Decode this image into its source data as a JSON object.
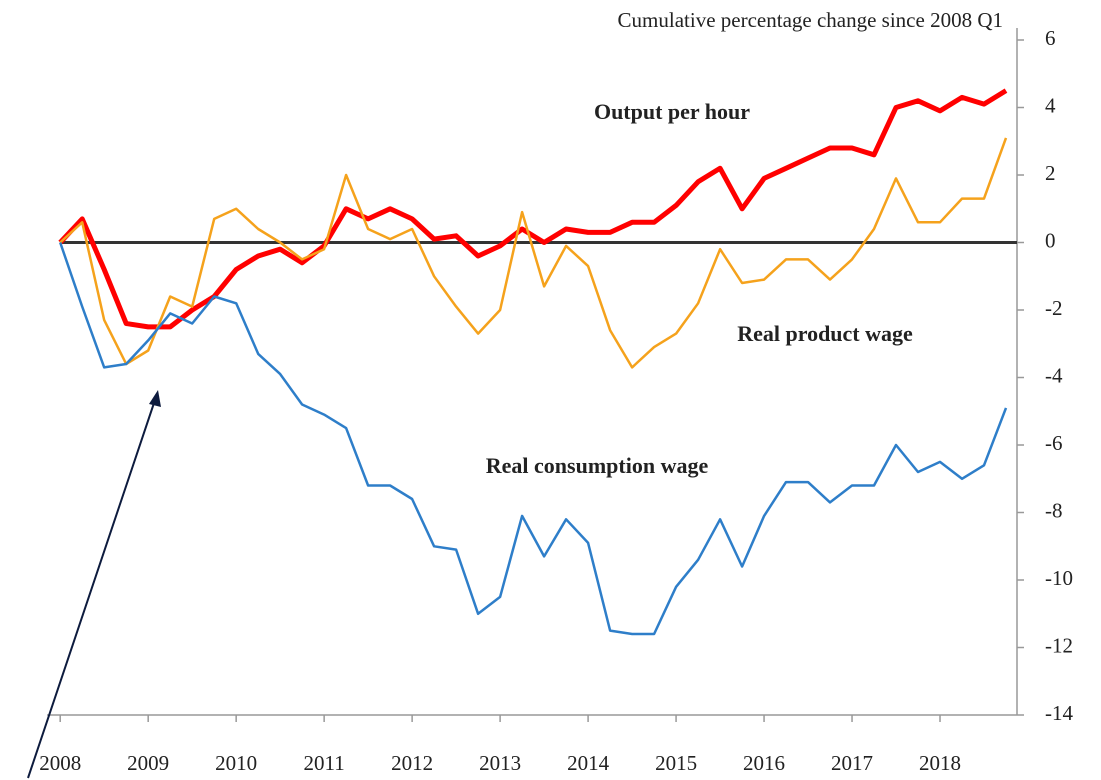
{
  "chart_data": {
    "type": "line",
    "title": "Cumulative percentage change since 2008 Q1",
    "x": [
      2008,
      2008.25,
      2008.5,
      2008.75,
      2009,
      2009.25,
      2009.5,
      2009.75,
      2010,
      2010.25,
      2010.5,
      2010.75,
      2011,
      2011.25,
      2011.5,
      2011.75,
      2012,
      2012.25,
      2012.5,
      2012.75,
      2013,
      2013.25,
      2013.5,
      2013.75,
      2014,
      2014.25,
      2014.5,
      2014.75,
      2015,
      2015.25,
      2015.5,
      2015.75,
      2016,
      2016.25,
      2016.5,
      2016.75,
      2017,
      2017.25,
      2017.5,
      2017.75,
      2018,
      2018.25,
      2018.5,
      2018.75
    ],
    "series": [
      {
        "name": "Output per hour",
        "color": "#ff0000",
        "width": 5,
        "values": [
          0,
          0.7,
          -0.8,
          -2.4,
          -2.5,
          -2.5,
          -2.0,
          -1.6,
          -0.8,
          -0.4,
          -0.2,
          -0.6,
          -0.1,
          1.0,
          0.7,
          1.0,
          0.7,
          0.1,
          0.2,
          -0.4,
          -0.1,
          0.4,
          0.0,
          0.4,
          0.3,
          0.3,
          0.6,
          0.6,
          1.1,
          1.8,
          2.2,
          1.0,
          1.9,
          2.2,
          2.5,
          2.8,
          2.8,
          2.6,
          4.0,
          4.2,
          3.9,
          4.3,
          4.1,
          4.5
        ]
      },
      {
        "name": "Real product wage",
        "color": "#f5a21c",
        "width": 2.5,
        "values": [
          0,
          0.6,
          -2.3,
          -3.6,
          -3.2,
          -1.6,
          -1.9,
          0.7,
          1.0,
          0.4,
          0.0,
          -0.5,
          -0.2,
          2.0,
          0.4,
          0.1,
          0.4,
          -1.0,
          -1.9,
          -2.7,
          -2.0,
          0.9,
          -1.3,
          -0.1,
          -0.7,
          -2.6,
          -3.7,
          -3.1,
          -2.7,
          -1.8,
          -0.2,
          -1.2,
          -1.1,
          -0.5,
          -0.5,
          -1.1,
          -0.5,
          0.4,
          1.9,
          0.6,
          0.6,
          1.3,
          1.3,
          3.1
        ]
      },
      {
        "name": "Real consumption wage",
        "color": "#2e7ec9",
        "width": 2.5,
        "values": [
          0,
          -1.9,
          -3.7,
          -3.6,
          -2.9,
          -2.1,
          -2.4,
          -1.6,
          -1.8,
          -3.3,
          -3.9,
          -4.8,
          -5.1,
          -5.5,
          -7.2,
          -7.2,
          -7.6,
          -9.0,
          -9.1,
          -11.0,
          -10.5,
          -8.1,
          -9.3,
          -8.2,
          -8.9,
          -11.5,
          -11.6,
          -11.6,
          -10.2,
          -9.4,
          -8.2,
          -9.6,
          -8.1,
          -7.1,
          -7.1,
          -7.7,
          -7.2,
          -7.2,
          -6.0,
          -6.8,
          -6.5,
          -7.0,
          -6.6,
          -4.9
        ]
      }
    ],
    "xlim": [
      2007.85,
      2018.875
    ],
    "xticks": [
      2008,
      2009,
      2010,
      2011,
      2012,
      2013,
      2014,
      2015,
      2016,
      2017,
      2018
    ],
    "ylim": [
      -14,
      6
    ],
    "yticks": [
      6,
      4,
      2,
      0,
      -2,
      -4,
      -6,
      -8,
      -10,
      -12,
      -14
    ],
    "zero_line": true
  }
}
